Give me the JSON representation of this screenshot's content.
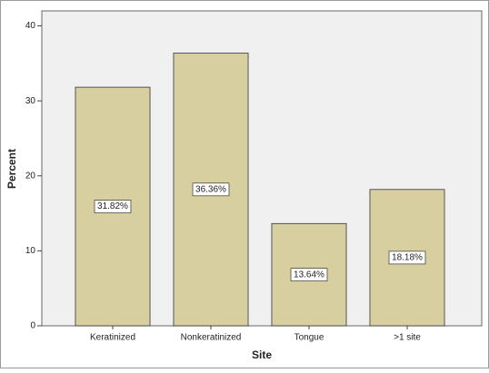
{
  "chart_data": {
    "type": "bar",
    "x_label": "Site",
    "y_label": "Percent",
    "categories": [
      "Keratinized",
      "Nonkeratinized",
      "Tongue",
      ">1 site"
    ],
    "values": [
      31.82,
      36.36,
      13.64,
      18.18
    ],
    "value_labels": [
      "31.82%",
      "36.36%",
      "13.64%",
      "18.18%"
    ],
    "color": "#d7cf9f",
    "ylim": [
      0,
      42
    ],
    "yticks": [
      0,
      10,
      20,
      30,
      40
    ],
    "grid": false
  }
}
